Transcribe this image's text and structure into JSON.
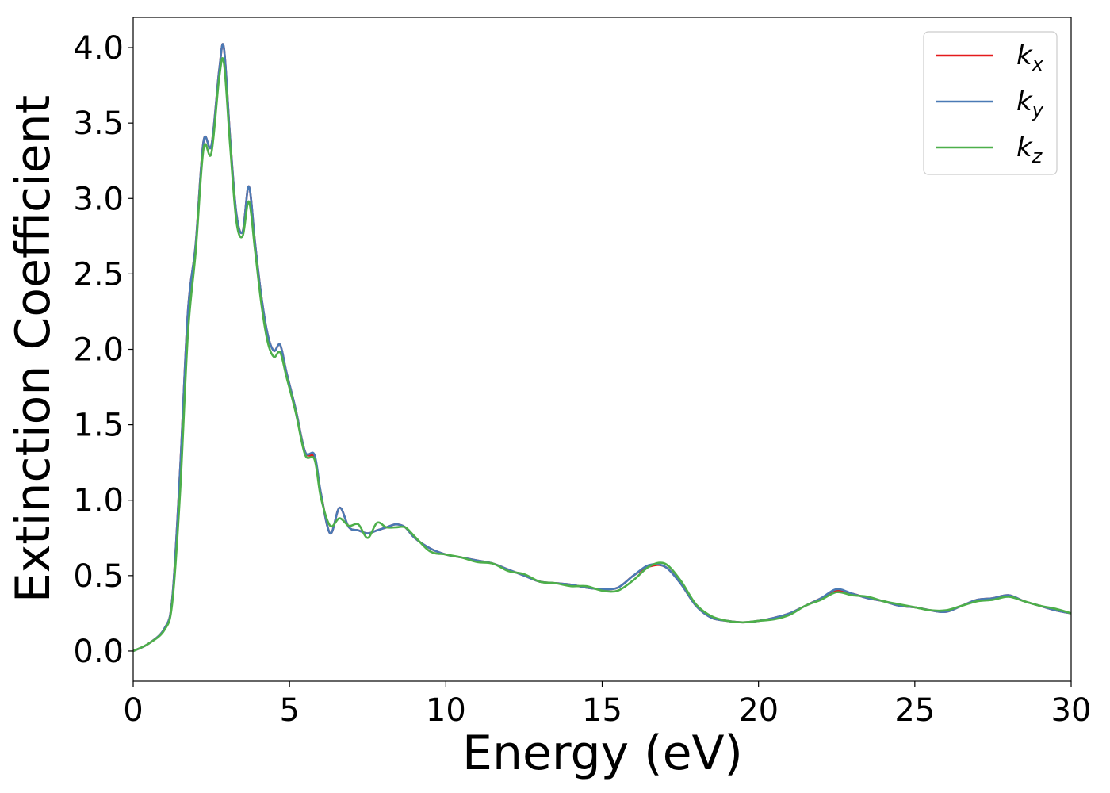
{
  "chart_data": {
    "type": "line",
    "xlabel": "Energy (eV)",
    "ylabel": "Extinction Coefficient",
    "xlim": [
      0,
      30
    ],
    "ylim": [
      -0.2,
      4.2
    ],
    "xticks": [
      0,
      5,
      10,
      15,
      20,
      25,
      30
    ],
    "yticks": [
      0.0,
      0.5,
      1.0,
      1.5,
      2.0,
      2.5,
      3.0,
      3.5,
      4.0
    ],
    "grid": false,
    "legend_position": "top-right",
    "series": [
      {
        "name": "k",
        "subscript": "x",
        "color": "#e41a1c",
        "x": [
          0,
          0.5,
          1,
          1.25,
          1.5,
          1.75,
          2,
          2.25,
          2.5,
          2.75,
          2.9,
          3.1,
          3.3,
          3.5,
          3.7,
          3.9,
          4.1,
          4.3,
          4.5,
          4.7,
          4.9,
          5.2,
          5.5,
          5.8,
          6,
          6.3,
          6.6,
          6.9,
          7.2,
          7.5,
          7.8,
          8.1,
          8.4,
          8.7,
          9,
          9.5,
          10,
          10.5,
          11,
          11.5,
          12,
          12.5,
          13,
          13.5,
          14,
          14.5,
          15,
          15.5,
          16,
          16.5,
          17,
          17.5,
          18,
          18.5,
          19,
          19.5,
          20,
          20.5,
          21,
          21.5,
          22,
          22.5,
          23,
          23.5,
          24,
          24.5,
          25,
          25.5,
          26,
          26.5,
          27,
          27.5,
          28,
          28.5,
          29,
          29.5,
          30
        ],
        "values": [
          0.0,
          0.05,
          0.15,
          0.35,
          1.2,
          2.25,
          2.7,
          3.38,
          3.35,
          3.85,
          4.0,
          3.4,
          2.9,
          2.78,
          3.08,
          2.7,
          2.35,
          2.1,
          1.99,
          2.03,
          1.85,
          1.6,
          1.32,
          1.28,
          1.05,
          0.78,
          0.95,
          0.82,
          0.8,
          0.78,
          0.8,
          0.82,
          0.84,
          0.82,
          0.75,
          0.68,
          0.64,
          0.62,
          0.6,
          0.58,
          0.54,
          0.5,
          0.46,
          0.45,
          0.44,
          0.42,
          0.41,
          0.42,
          0.5,
          0.56,
          0.56,
          0.45,
          0.3,
          0.22,
          0.2,
          0.19,
          0.2,
          0.22,
          0.25,
          0.3,
          0.35,
          0.4,
          0.38,
          0.35,
          0.33,
          0.3,
          0.29,
          0.27,
          0.26,
          0.3,
          0.34,
          0.35,
          0.37,
          0.33,
          0.3,
          0.27,
          0.25
        ]
      },
      {
        "name": "k",
        "subscript": "y",
        "color": "#4a7ab5",
        "x": [
          0,
          0.5,
          1,
          1.25,
          1.5,
          1.75,
          2,
          2.25,
          2.5,
          2.75,
          2.9,
          3.1,
          3.3,
          3.5,
          3.7,
          3.9,
          4.1,
          4.3,
          4.5,
          4.7,
          4.9,
          5.2,
          5.5,
          5.8,
          6,
          6.3,
          6.6,
          6.9,
          7.2,
          7.5,
          7.8,
          8.1,
          8.4,
          8.7,
          9,
          9.5,
          10,
          10.5,
          11,
          11.5,
          12,
          12.5,
          13,
          13.5,
          14,
          14.5,
          15,
          15.5,
          16,
          16.5,
          17,
          17.5,
          18,
          18.5,
          19,
          19.5,
          20,
          20.5,
          21,
          21.5,
          22,
          22.5,
          23,
          23.5,
          24,
          24.5,
          25,
          25.5,
          26,
          26.5,
          27,
          27.5,
          28,
          28.5,
          29,
          29.5,
          30
        ],
        "values": [
          0.0,
          0.05,
          0.15,
          0.35,
          1.2,
          2.25,
          2.7,
          3.38,
          3.35,
          3.85,
          4.0,
          3.4,
          2.9,
          2.78,
          3.08,
          2.7,
          2.35,
          2.1,
          1.99,
          2.03,
          1.85,
          1.6,
          1.32,
          1.3,
          1.05,
          0.78,
          0.95,
          0.82,
          0.8,
          0.78,
          0.8,
          0.82,
          0.84,
          0.82,
          0.75,
          0.68,
          0.64,
          0.62,
          0.6,
          0.58,
          0.54,
          0.5,
          0.46,
          0.45,
          0.44,
          0.42,
          0.41,
          0.42,
          0.5,
          0.57,
          0.56,
          0.45,
          0.3,
          0.22,
          0.2,
          0.19,
          0.2,
          0.22,
          0.25,
          0.3,
          0.35,
          0.41,
          0.38,
          0.35,
          0.33,
          0.3,
          0.29,
          0.27,
          0.26,
          0.3,
          0.34,
          0.35,
          0.37,
          0.33,
          0.3,
          0.27,
          0.25
        ]
      },
      {
        "name": "k",
        "subscript": "z",
        "color": "#4daf4a",
        "x": [
          0,
          0.5,
          1,
          1.25,
          1.5,
          1.75,
          2,
          2.25,
          2.5,
          2.75,
          2.9,
          3.1,
          3.3,
          3.5,
          3.7,
          3.9,
          4.1,
          4.3,
          4.5,
          4.7,
          4.9,
          5.2,
          5.5,
          5.8,
          6,
          6.3,
          6.6,
          6.9,
          7.2,
          7.5,
          7.8,
          8.1,
          8.4,
          8.7,
          9,
          9.5,
          10,
          10.5,
          11,
          11.5,
          12,
          12.5,
          13,
          13.5,
          14,
          14.5,
          15,
          15.5,
          16,
          16.5,
          17,
          17.5,
          18,
          18.5,
          19,
          19.5,
          20,
          20.5,
          21,
          21.5,
          22,
          22.5,
          23,
          23.5,
          24,
          24.5,
          25,
          25.5,
          26,
          26.5,
          27,
          27.5,
          28,
          28.5,
          29,
          29.5,
          30
        ],
        "values": [
          0.0,
          0.05,
          0.14,
          0.32,
          1.05,
          2.1,
          2.65,
          3.33,
          3.3,
          3.8,
          3.9,
          3.35,
          2.85,
          2.75,
          2.98,
          2.65,
          2.3,
          2.05,
          1.95,
          1.98,
          1.82,
          1.58,
          1.3,
          1.27,
          1.02,
          0.83,
          0.88,
          0.83,
          0.84,
          0.75,
          0.85,
          0.82,
          0.82,
          0.82,
          0.76,
          0.66,
          0.64,
          0.62,
          0.59,
          0.58,
          0.53,
          0.51,
          0.46,
          0.45,
          0.43,
          0.43,
          0.4,
          0.4,
          0.47,
          0.56,
          0.58,
          0.47,
          0.31,
          0.23,
          0.2,
          0.19,
          0.2,
          0.21,
          0.24,
          0.3,
          0.34,
          0.39,
          0.37,
          0.36,
          0.33,
          0.31,
          0.29,
          0.27,
          0.27,
          0.3,
          0.33,
          0.34,
          0.36,
          0.33,
          0.3,
          0.28,
          0.25
        ]
      }
    ]
  }
}
